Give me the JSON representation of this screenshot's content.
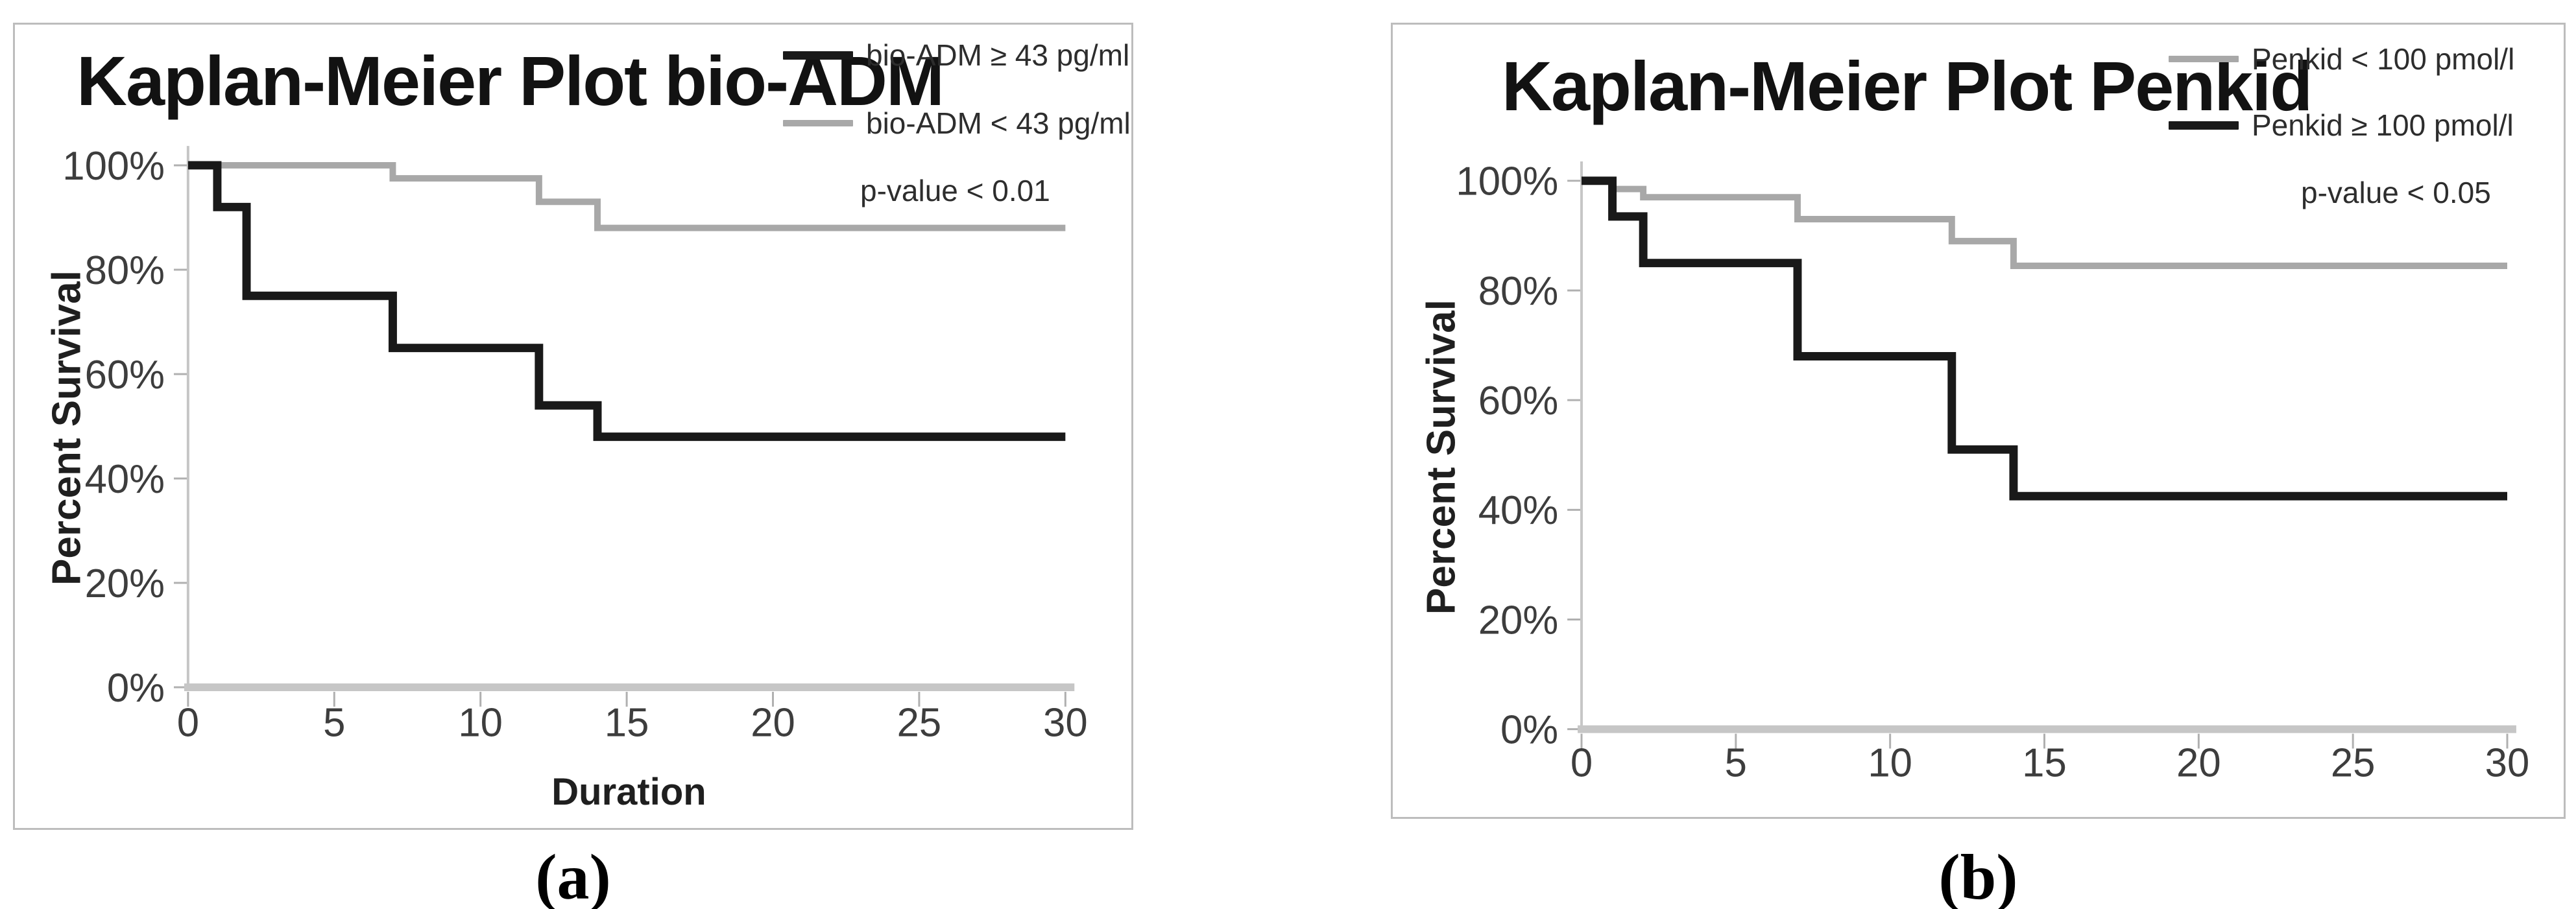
{
  "figure": {
    "background": "#ffffff",
    "panel_border_color": "#bdbdbd",
    "axis_color": "#c6c6c6",
    "tick_color": "#b0b0b0",
    "tick_label_color": "#3d3d3d"
  },
  "panels": [
    {
      "caption": "(a)"
    },
    {
      "caption": "(b)"
    }
  ],
  "chart_data": [
    {
      "type": "line",
      "subtype": "kaplan-meier-step",
      "title": "Kaplan-Meier Plot bio-ADM",
      "xlabel": "Duration",
      "ylabel": "Percent Survival",
      "xlim": [
        0,
        30
      ],
      "ylim": [
        0,
        100
      ],
      "x_ticks": [
        0,
        5,
        10,
        15,
        20,
        25,
        30
      ],
      "y_tick_values": [
        0,
        20,
        40,
        60,
        80,
        100
      ],
      "y_ticks": [
        "0%",
        "20%",
        "40%",
        "60%",
        "80%",
        "100%"
      ],
      "grid": false,
      "legend_position": "top-right",
      "p_value": "p-value < 0.01",
      "series": [
        {
          "name": "bio-ADM ≥ 43 pg/ml",
          "color": "#191919",
          "line_width": 13,
          "points": [
            [
              0,
              100
            ],
            [
              1,
              100
            ],
            [
              1,
              92
            ],
            [
              2,
              92
            ],
            [
              2,
              75
            ],
            [
              7,
              75
            ],
            [
              7,
              65
            ],
            [
              12,
              65
            ],
            [
              12,
              54
            ],
            [
              14,
              54
            ],
            [
              14,
              48
            ],
            [
              30,
              48
            ]
          ]
        },
        {
          "name": "bio-ADM < 43 pg/ml",
          "color": "#a8a8a8",
          "line_width": 10,
          "points": [
            [
              0,
              100
            ],
            [
              7,
              100
            ],
            [
              7,
              97.5
            ],
            [
              12,
              97.5
            ],
            [
              12,
              93
            ],
            [
              14,
              93
            ],
            [
              14,
              88
            ],
            [
              30,
              88
            ]
          ]
        }
      ]
    },
    {
      "type": "line",
      "subtype": "kaplan-meier-step",
      "title": "Kaplan-Meier Plot Penkid",
      "xlabel": "",
      "ylabel": "Percent Survival",
      "xlim": [
        0,
        30
      ],
      "ylim": [
        0,
        100
      ],
      "x_ticks": [
        0,
        5,
        10,
        15,
        20,
        25,
        30
      ],
      "y_tick_values": [
        0,
        20,
        40,
        60,
        80,
        100
      ],
      "y_ticks": [
        "0%",
        "20%",
        "40%",
        "60%",
        "80%",
        "100%"
      ],
      "grid": false,
      "legend_position": "top-right",
      "p_value": "p-value < 0.05",
      "series": [
        {
          "name": "Penkid < 100 pmol/l",
          "color": "#a8a8a8",
          "line_width": 10,
          "points": [
            [
              0,
              100
            ],
            [
              1,
              100
            ],
            [
              1,
              98.5
            ],
            [
              2,
              98.5
            ],
            [
              2,
              97
            ],
            [
              7,
              97
            ],
            [
              7,
              93
            ],
            [
              12,
              93
            ],
            [
              12,
              89
            ],
            [
              14,
              89
            ],
            [
              14,
              84.5
            ],
            [
              30,
              84.5
            ]
          ]
        },
        {
          "name": "Penkid ≥ 100 pmol/l",
          "color": "#191919",
          "line_width": 13,
          "points": [
            [
              0,
              100
            ],
            [
              1,
              100
            ],
            [
              1,
              93.5
            ],
            [
              2,
              93.5
            ],
            [
              2,
              85
            ],
            [
              7,
              85
            ],
            [
              7,
              68
            ],
            [
              12,
              68
            ],
            [
              12,
              51
            ],
            [
              14,
              51
            ],
            [
              14,
              42.5
            ],
            [
              30,
              42.5
            ]
          ]
        }
      ]
    }
  ]
}
